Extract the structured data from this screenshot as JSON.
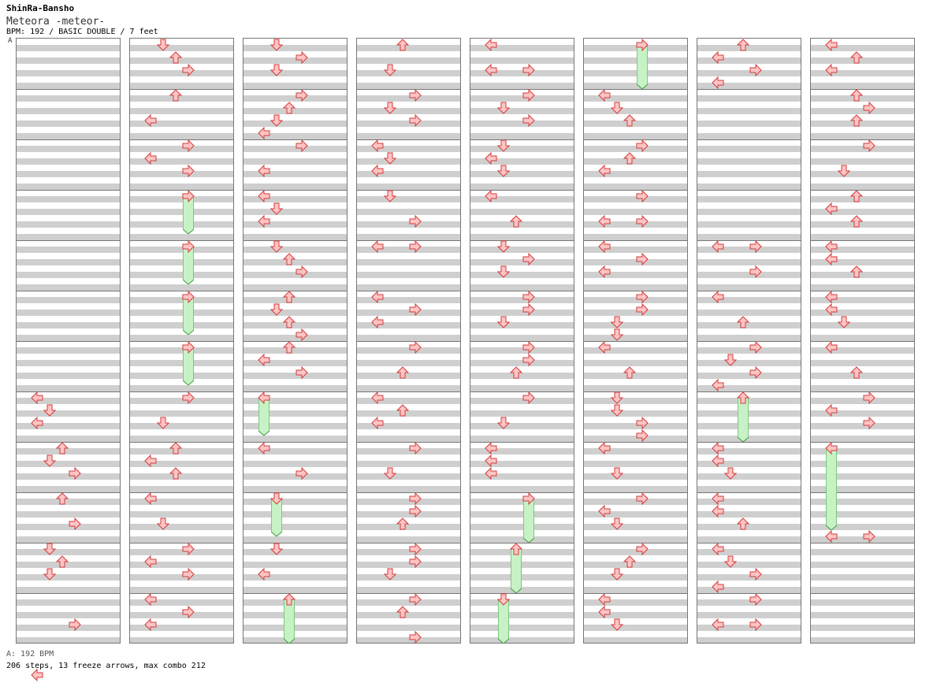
{
  "header": {
    "artist": "ShinRa-Bansho",
    "title": "Meteora -meteor-",
    "info": "BPM: 192 / BASIC DOUBLE / 7 feet",
    "bpm_marker": "A"
  },
  "footer": {
    "bpm_line": "A: 192 BPM",
    "stats": "206 steps, 13 freeze arrows, max combo 212"
  },
  "chart_data": {
    "type": "step-chart",
    "style": "DOUBLE",
    "difficulty": "BASIC",
    "feet": 7,
    "bpm": 192,
    "steps": 206,
    "freeze_arrows": 13,
    "max_combo": 212,
    "columns": [
      {
        "arrows": [
          [
            7,
            0,
            "L"
          ],
          [
            7,
            1,
            "D"
          ],
          [
            7,
            2,
            "L"
          ],
          [
            8,
            0,
            "U"
          ],
          [
            8,
            1,
            "D"
          ],
          [
            8,
            2,
            "R"
          ],
          [
            9,
            0,
            "U"
          ],
          [
            9,
            2,
            "R"
          ],
          [
            10,
            0,
            "D"
          ],
          [
            10,
            1,
            "U"
          ],
          [
            10,
            2,
            "D"
          ],
          [
            11,
            2,
            "R"
          ],
          [
            11,
            6,
            "L"
          ]
        ],
        "freezes": []
      },
      {
        "arrows": [
          [
            0,
            0,
            "D"
          ],
          [
            0,
            1,
            "U"
          ],
          [
            0,
            2,
            "R"
          ],
          [
            1,
            0,
            "U"
          ],
          [
            1,
            2,
            "L"
          ],
          [
            2,
            0,
            "R"
          ],
          [
            2,
            1,
            "L"
          ],
          [
            2,
            2,
            "R"
          ],
          [
            3,
            0,
            "R"
          ],
          [
            4,
            0,
            "R"
          ],
          [
            5,
            0,
            "R"
          ],
          [
            6,
            0,
            "R"
          ],
          [
            7,
            0,
            "R"
          ],
          [
            7,
            2,
            "D"
          ],
          [
            8,
            0,
            "U"
          ],
          [
            8,
            1,
            "L"
          ],
          [
            8,
            2,
            "U"
          ],
          [
            9,
            0,
            "L"
          ],
          [
            9,
            2,
            "D"
          ],
          [
            10,
            0,
            "R"
          ],
          [
            10,
            1,
            "L"
          ],
          [
            10,
            2,
            "R"
          ],
          [
            11,
            0,
            "L"
          ],
          [
            11,
            1,
            "R"
          ],
          [
            11,
            2,
            "L"
          ]
        ],
        "freezes": [
          [
            3,
            0,
            3,
            3
          ],
          [
            4,
            0,
            4,
            3
          ],
          [
            5,
            0,
            5,
            3
          ],
          [
            6,
            0,
            6,
            3
          ]
        ]
      },
      {
        "arrows": [
          [
            0,
            0,
            "D"
          ],
          [
            0,
            1,
            "R"
          ],
          [
            0,
            2,
            "D"
          ],
          [
            1,
            0,
            "R"
          ],
          [
            1,
            1,
            "U"
          ],
          [
            1,
            2,
            "D"
          ],
          [
            1,
            3,
            "L"
          ],
          [
            2,
            0,
            "R"
          ],
          [
            2,
            2,
            "L"
          ],
          [
            3,
            0,
            "L"
          ],
          [
            3,
            1,
            "D"
          ],
          [
            3,
            2,
            "L"
          ],
          [
            4,
            0,
            "D"
          ],
          [
            4,
            1,
            "U"
          ],
          [
            4,
            2,
            "R"
          ],
          [
            5,
            0,
            "U"
          ],
          [
            5,
            1,
            "D"
          ],
          [
            5,
            2,
            "U"
          ],
          [
            5,
            3,
            "R"
          ],
          [
            6,
            0,
            "U"
          ],
          [
            6,
            1,
            "L"
          ],
          [
            6,
            2,
            "R"
          ],
          [
            7,
            0,
            "L"
          ],
          [
            8,
            0,
            "L"
          ],
          [
            8,
            2,
            "R"
          ],
          [
            9,
            0,
            "D"
          ],
          [
            10,
            0,
            "D"
          ],
          [
            10,
            2,
            "L"
          ],
          [
            11,
            0,
            "U"
          ]
        ],
        "freezes": [
          [
            7,
            0,
            7,
            3
          ],
          [
            9,
            0,
            9,
            3
          ],
          [
            11,
            0,
            11,
            3.5
          ]
        ]
      },
      {
        "arrows": [
          [
            0,
            0,
            "U"
          ],
          [
            0,
            2,
            "D"
          ],
          [
            1,
            0,
            "R"
          ],
          [
            1,
            1,
            "D"
          ],
          [
            1,
            2,
            "R"
          ],
          [
            2,
            0,
            "L"
          ],
          [
            2,
            1,
            "D"
          ],
          [
            2,
            2,
            "L"
          ],
          [
            3,
            0,
            "D"
          ],
          [
            3,
            2,
            "R"
          ],
          [
            4,
            0,
            "R"
          ],
          [
            4,
            0,
            "L"
          ],
          [
            5,
            0,
            "L"
          ],
          [
            5,
            1,
            "R"
          ],
          [
            5,
            2,
            "L"
          ],
          [
            6,
            0,
            "R"
          ],
          [
            6,
            2,
            "U"
          ],
          [
            7,
            0,
            "L"
          ],
          [
            7,
            1,
            "U"
          ],
          [
            7,
            2,
            "L"
          ],
          [
            8,
            0,
            "R"
          ],
          [
            8,
            2,
            "D"
          ],
          [
            9,
            0,
            "R"
          ],
          [
            9,
            1,
            "R"
          ],
          [
            9,
            2,
            "U"
          ],
          [
            10,
            0,
            "R"
          ],
          [
            10,
            1,
            "R"
          ],
          [
            10,
            2,
            "D"
          ],
          [
            11,
            0,
            "R"
          ],
          [
            11,
            1,
            "U"
          ],
          [
            11,
            3,
            "R"
          ]
        ],
        "freezes": []
      },
      {
        "arrows": [
          [
            0,
            0,
            "L"
          ],
          [
            0,
            2,
            "R"
          ],
          [
            0,
            2,
            "L"
          ],
          [
            1,
            0,
            "R"
          ],
          [
            1,
            1,
            "D"
          ],
          [
            1,
            2,
            "R"
          ],
          [
            2,
            0,
            "D"
          ],
          [
            2,
            1,
            "L"
          ],
          [
            2,
            2,
            "D"
          ],
          [
            3,
            0,
            "L"
          ],
          [
            3,
            2,
            "U"
          ],
          [
            4,
            0,
            "D"
          ],
          [
            4,
            1,
            "R"
          ],
          [
            4,
            2,
            "D"
          ],
          [
            5,
            0,
            "R"
          ],
          [
            5,
            1,
            "R"
          ],
          [
            5,
            2,
            "D"
          ],
          [
            6,
            0,
            "R"
          ],
          [
            6,
            1,
            "R"
          ],
          [
            6,
            2,
            "U"
          ],
          [
            7,
            0,
            "R"
          ],
          [
            7,
            2,
            "D"
          ],
          [
            8,
            0,
            "L"
          ],
          [
            8,
            1,
            "L"
          ],
          [
            8,
            2,
            "L"
          ],
          [
            9,
            0,
            "R"
          ],
          [
            10,
            0,
            "U"
          ],
          [
            11,
            0,
            "D"
          ]
        ],
        "freezes": [
          [
            9,
            0,
            9,
            3.5
          ],
          [
            10,
            0,
            10,
            3.5
          ],
          [
            11,
            0,
            11,
            3.5
          ]
        ]
      },
      {
        "arrows": [
          [
            0,
            0,
            "R"
          ],
          [
            1,
            0,
            "L"
          ],
          [
            1,
            1,
            "D"
          ],
          [
            1,
            2,
            "U"
          ],
          [
            2,
            0,
            "R"
          ],
          [
            2,
            1,
            "U"
          ],
          [
            2,
            2,
            "L"
          ],
          [
            3,
            0,
            "R"
          ],
          [
            3,
            2,
            "R"
          ],
          [
            3,
            2,
            "L"
          ],
          [
            4,
            0,
            "L"
          ],
          [
            4,
            1,
            "R"
          ],
          [
            4,
            2,
            "L"
          ],
          [
            5,
            0,
            "R"
          ],
          [
            5,
            1,
            "R"
          ],
          [
            5,
            2,
            "D"
          ],
          [
            5,
            3,
            "D"
          ],
          [
            6,
            0,
            "L"
          ],
          [
            6,
            2,
            "U"
          ],
          [
            7,
            0,
            "D"
          ],
          [
            7,
            1,
            "D"
          ],
          [
            7,
            2,
            "R"
          ],
          [
            7,
            3,
            "R"
          ],
          [
            8,
            0,
            "L"
          ],
          [
            8,
            2,
            "D"
          ],
          [
            9,
            0,
            "R"
          ],
          [
            9,
            1,
            "L"
          ],
          [
            9,
            2,
            "D"
          ],
          [
            10,
            0,
            "R"
          ],
          [
            10,
            1,
            "U"
          ],
          [
            10,
            2,
            "D"
          ],
          [
            11,
            0,
            "L"
          ],
          [
            11,
            1,
            "L"
          ],
          [
            11,
            2,
            "D"
          ]
        ],
        "freezes": [
          [
            0,
            0,
            0,
            3.5
          ]
        ]
      },
      {
        "arrows": [
          [
            0,
            0,
            "U"
          ],
          [
            0,
            1,
            "L"
          ],
          [
            0,
            2,
            "R"
          ],
          [
            0,
            3,
            "L"
          ],
          [
            4,
            0,
            "R"
          ],
          [
            4,
            0,
            "L"
          ],
          [
            4,
            2,
            "R"
          ],
          [
            5,
            0,
            "L"
          ],
          [
            5,
            2,
            "U"
          ],
          [
            6,
            0,
            "R"
          ],
          [
            6,
            1,
            "D"
          ],
          [
            6,
            2,
            "R"
          ],
          [
            6,
            3,
            "L"
          ],
          [
            7,
            0,
            "U"
          ],
          [
            8,
            0,
            "L"
          ],
          [
            8,
            1,
            "L"
          ],
          [
            8,
            2,
            "D"
          ],
          [
            9,
            0,
            "L"
          ],
          [
            9,
            1,
            "L"
          ],
          [
            9,
            2,
            "U"
          ],
          [
            10,
            0,
            "L"
          ],
          [
            10,
            1,
            "D"
          ],
          [
            10,
            2,
            "R"
          ],
          [
            10,
            3,
            "L"
          ],
          [
            11,
            0,
            "R"
          ],
          [
            11,
            2,
            "R"
          ],
          [
            11,
            2,
            "L"
          ]
        ],
        "freezes": [
          [
            7,
            0,
            7,
            3.5
          ]
        ]
      },
      {
        "arrows": [
          [
            0,
            0,
            "L"
          ],
          [
            0,
            1,
            "U"
          ],
          [
            0,
            2,
            "L"
          ],
          [
            1,
            0,
            "U"
          ],
          [
            1,
            1,
            "R"
          ],
          [
            1,
            2,
            "U"
          ],
          [
            2,
            0,
            "R"
          ],
          [
            2,
            2,
            "D"
          ],
          [
            3,
            0,
            "U"
          ],
          [
            3,
            1,
            "L"
          ],
          [
            3,
            2,
            "U"
          ],
          [
            4,
            0,
            "L"
          ],
          [
            4,
            1,
            "L"
          ],
          [
            4,
            2,
            "U"
          ],
          [
            5,
            0,
            "L"
          ],
          [
            5,
            1,
            "L"
          ],
          [
            5,
            2,
            "D"
          ],
          [
            6,
            0,
            "L"
          ],
          [
            6,
            2,
            "U"
          ],
          [
            7,
            0,
            "R"
          ],
          [
            7,
            1,
            "L"
          ],
          [
            7,
            2,
            "R"
          ],
          [
            8,
            0,
            "L"
          ],
          [
            9,
            3,
            "R"
          ],
          [
            9,
            3,
            "L"
          ]
        ],
        "freezes": [
          [
            8,
            0,
            8,
            6.5
          ]
        ]
      }
    ]
  }
}
